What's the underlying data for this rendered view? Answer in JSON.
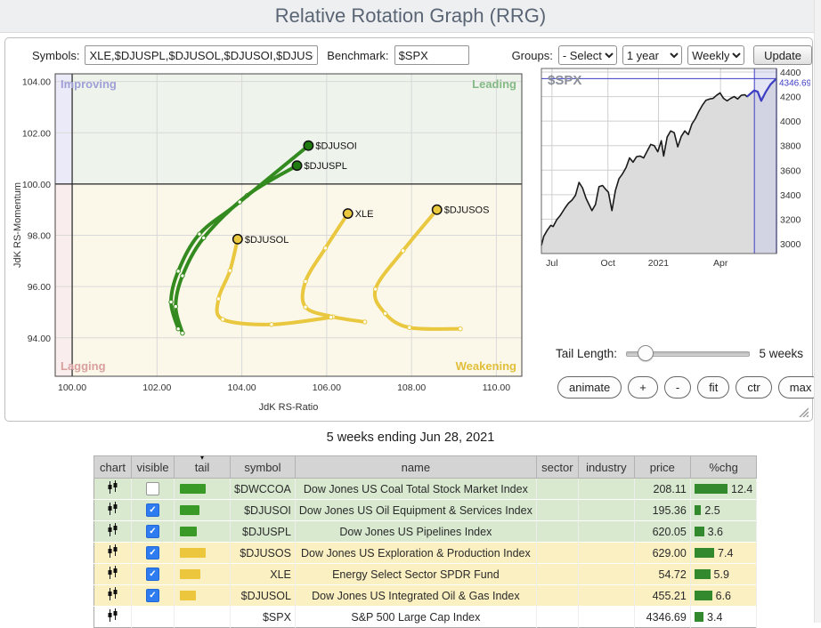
{
  "header": {
    "title": "Relative Rotation Graph (RRG)"
  },
  "toolbar": {
    "symbols_label": "Symbols:",
    "symbols_value": "XLE,$DJUSPL,$DJUSOL,$DJUSOI,$DJUSOS,$DWCCOA",
    "benchmark_label": "Benchmark:",
    "benchmark_value": "$SPX",
    "groups_label": "Groups:",
    "groups_value": "- Select -",
    "period_value": "1 year",
    "frequency_value": "Weekly",
    "update_label": "Update"
  },
  "colors": {
    "green_series": "#338a1e",
    "yellow_series": "#e9c73e",
    "chg_bar": "#338a2e",
    "accent_blue": "#3d3dc4",
    "header_bg": "#d4d4d4"
  },
  "chart_data": [
    {
      "type": "scatter",
      "title": "Relative Rotation Graph",
      "xlabel": "JdK RS-Ratio",
      "ylabel": "JdK RS-Momentum",
      "xlim": [
        99.6,
        110.6
      ],
      "ylim": [
        92.5,
        104.3
      ],
      "xticks": [
        100,
        102,
        104,
        106,
        108,
        110
      ],
      "yticks": [
        94,
        96,
        98,
        100,
        102,
        104
      ],
      "center": [
        100,
        100
      ],
      "quadrants": [
        {
          "name": "Improving",
          "color": "#9f9fd6",
          "fill": "#eaeaf8",
          "pos": "top-left"
        },
        {
          "name": "Leading",
          "color": "#85b985",
          "fill": "#eef3ec",
          "pos": "top-right"
        },
        {
          "name": "Lagging",
          "color": "#d99f9f",
          "fill": "#f9eded",
          "pos": "bottom-left"
        },
        {
          "name": "Weakening",
          "color": "#e2bf3a",
          "fill": "#fbf8e9",
          "pos": "bottom-right"
        }
      ],
      "series": [
        {
          "name": "$DJUSOS",
          "color": "#e9c73e",
          "marker": "#ebc93f",
          "points": [
            [
              109.15,
              94.35
            ],
            [
              107.95,
              94.4
            ],
            [
              107.38,
              94.95
            ],
            [
              107.15,
              95.9
            ],
            [
              107.8,
              97.4
            ],
            [
              108.6,
              99.0
            ]
          ]
        },
        {
          "name": "XLE",
          "color": "#e9c73e",
          "marker": "#ebc93f",
          "points": [
            [
              106.9,
              94.62
            ],
            [
              106.15,
              94.82
            ],
            [
              105.5,
              95.2
            ],
            [
              105.5,
              96.2
            ],
            [
              105.97,
              97.5
            ],
            [
              106.5,
              98.85
            ]
          ]
        },
        {
          "name": "$DJUSOL",
          "color": "#e9c73e",
          "marker": "#ebc93f",
          "points": [
            [
              106.1,
              94.8
            ],
            [
              104.7,
              94.52
            ],
            [
              103.55,
              94.72
            ],
            [
              103.45,
              95.52
            ],
            [
              103.72,
              96.62
            ],
            [
              103.9,
              97.85
            ]
          ]
        },
        {
          "name": "$DJUSPL",
          "color": "#338a1e",
          "marker": "#1f7a0f",
          "points": [
            [
              102.6,
              94.18
            ],
            [
              102.44,
              95.22
            ],
            [
              102.6,
              96.42
            ],
            [
              103.1,
              97.9
            ],
            [
              104.12,
              99.55
            ],
            [
              105.3,
              100.72
            ]
          ]
        },
        {
          "name": "$DJUSOI",
          "color": "#338a1e",
          "marker": "#1f7a0f",
          "points": [
            [
              102.5,
              94.35
            ],
            [
              102.33,
              95.4
            ],
            [
              102.5,
              96.6
            ],
            [
              103.0,
              98.05
            ],
            [
              103.95,
              99.3
            ],
            [
              105.57,
              101.5
            ]
          ]
        }
      ]
    },
    {
      "type": "area",
      "title": "$SPX",
      "last_value": "4346.69",
      "ylim": [
        2920,
        4429
      ],
      "yticks": [
        3000,
        3200,
        3400,
        3600,
        3800,
        4000,
        4200,
        4400
      ],
      "xticks": [
        {
          "label": "Jul",
          "f": 0.045
        },
        {
          "label": "Oct",
          "f": 0.283
        },
        {
          "label": "2021",
          "f": 0.498
        },
        {
          "label": "Apr",
          "f": 0.762
        }
      ],
      "highlight": [
        0.906,
        1.0
      ],
      "blue_from": 0.875,
      "line_color": "#1a1a1a",
      "area_color": "#dcdcdc",
      "accent_color": "#3d3dc4",
      "band_color": "#c7cbeb",
      "points": [
        [
          0,
          2985
        ],
        [
          0.01,
          3060
        ],
        [
          0.025,
          3110
        ],
        [
          0.04,
          3150
        ],
        [
          0.05,
          3140
        ],
        [
          0.065,
          3195
        ],
        [
          0.08,
          3230
        ],
        [
          0.1,
          3290
        ],
        [
          0.115,
          3330
        ],
        [
          0.13,
          3355
        ],
        [
          0.145,
          3395
        ],
        [
          0.16,
          3500
        ],
        [
          0.175,
          3455
        ],
        [
          0.19,
          3370
        ],
        [
          0.205,
          3310
        ],
        [
          0.215,
          3270
        ],
        [
          0.23,
          3320
        ],
        [
          0.245,
          3465
        ],
        [
          0.26,
          3475
        ],
        [
          0.275,
          3440
        ],
        [
          0.285,
          3420
        ],
        [
          0.3,
          3270
        ],
        [
          0.315,
          3435
        ],
        [
          0.33,
          3530
        ],
        [
          0.345,
          3570
        ],
        [
          0.36,
          3620
        ],
        [
          0.375,
          3700
        ],
        [
          0.39,
          3665
        ],
        [
          0.405,
          3710
        ],
        [
          0.42,
          3715
        ],
        [
          0.435,
          3700
        ],
        [
          0.45,
          3755
        ],
        [
          0.465,
          3810
        ],
        [
          0.48,
          3800
        ],
        [
          0.495,
          3750
        ],
        [
          0.51,
          3840
        ],
        [
          0.52,
          3715
        ],
        [
          0.535,
          3870
        ],
        [
          0.55,
          3920
        ],
        [
          0.565,
          3905
        ],
        [
          0.58,
          3790
        ],
        [
          0.595,
          3875
        ],
        [
          0.61,
          3920
        ],
        [
          0.625,
          3890
        ],
        [
          0.64,
          3975
        ],
        [
          0.655,
          4020
        ],
        [
          0.67,
          4080
        ],
        [
          0.685,
          4130
        ],
        [
          0.7,
          4170
        ],
        [
          0.715,
          4180
        ],
        [
          0.73,
          4185
        ],
        [
          0.745,
          4210
        ],
        [
          0.76,
          4230
        ],
        [
          0.775,
          4185
        ],
        [
          0.79,
          4165
        ],
        [
          0.805,
          4185
        ],
        [
          0.82,
          4200
        ],
        [
          0.835,
          4180
        ],
        [
          0.85,
          4210
        ],
        [
          0.865,
          4215
        ],
        [
          0.875,
          4200
        ],
        [
          0.89,
          4225
        ],
        [
          0.905,
          4250
        ],
        [
          0.92,
          4240
        ],
        [
          0.935,
          4165
        ],
        [
          0.955,
          4240
        ],
        [
          0.975,
          4300
        ],
        [
          1.0,
          4347
        ]
      ]
    }
  ],
  "controls": {
    "tail_length_label": "Tail Length:",
    "tail_length_value": "5 weeks",
    "slider_pos": 0.15,
    "buttons": [
      "animate",
      "+",
      "-",
      "fit",
      "ctr",
      "max"
    ]
  },
  "caption": "5 weeks ending Jun 28, 2021",
  "table": {
    "sort_indicator": "▾",
    "columns": [
      "chart",
      "visible",
      "tail",
      "symbol",
      "name",
      "sector",
      "industry",
      "price",
      "%chg"
    ],
    "rows": [
      {
        "symbol": "$DWCCOA",
        "name": "Dow Jones US Coal Total Stock Market Index",
        "sector": "",
        "industry": "",
        "price": "208.11",
        "chg": "12.4",
        "visible": false,
        "tail_color": "#3a9a28",
        "tail_width": 29,
        "group": "green"
      },
      {
        "symbol": "$DJUSOI",
        "name": "Dow Jones US Oil Equipment & Services Index",
        "sector": "",
        "industry": "",
        "price": "195.36",
        "chg": "2.5",
        "visible": true,
        "tail_color": "#3a9a28",
        "tail_width": 22,
        "group": "green"
      },
      {
        "symbol": "$DJUSPL",
        "name": "Dow Jones US Pipelines Index",
        "sector": "",
        "industry": "",
        "price": "620.05",
        "chg": "3.6",
        "visible": true,
        "tail_color": "#3a9a28",
        "tail_width": 19,
        "group": "green"
      },
      {
        "symbol": "$DJUSOS",
        "name": "Dow Jones US Exploration & Production Index",
        "sector": "",
        "industry": "",
        "price": "629.00",
        "chg": "7.4",
        "visible": true,
        "tail_color": "#ecc73d",
        "tail_width": 29,
        "group": "yellow"
      },
      {
        "symbol": "XLE",
        "name": "Energy Select Sector SPDR Fund",
        "sector": "",
        "industry": "",
        "price": "54.72",
        "chg": "5.9",
        "visible": true,
        "tail_color": "#ecc73d",
        "tail_width": 23,
        "group": "yellow"
      },
      {
        "symbol": "$DJUSOL",
        "name": "Dow Jones US Integrated Oil & Gas Index",
        "sector": "",
        "industry": "",
        "price": "455.21",
        "chg": "6.6",
        "visible": true,
        "tail_color": "#ecc73d",
        "tail_width": 18,
        "group": "yellow"
      },
      {
        "symbol": "$SPX",
        "name": "S&P 500 Large Cap Index",
        "sector": "",
        "industry": "",
        "price": "4346.69",
        "chg": "3.4",
        "visible": null,
        "tail_color": null,
        "tail_width": 0,
        "group": "plain"
      }
    ]
  }
}
